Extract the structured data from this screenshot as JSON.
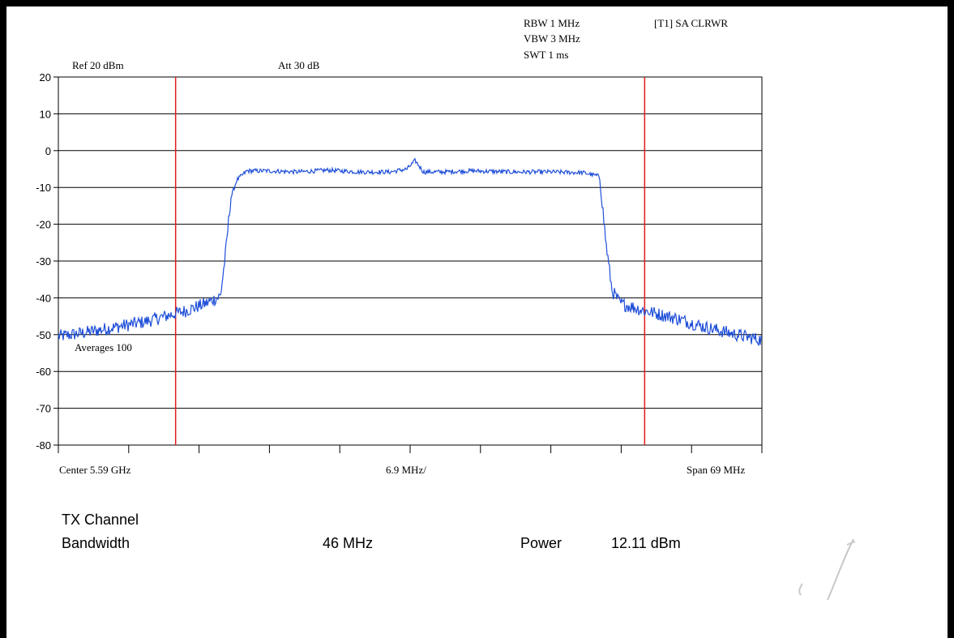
{
  "header": {
    "rbw": "RBW 1 MHz",
    "vbw": "VBW 3 MHz",
    "swt": "SWT 1 ms",
    "trace": "[T1] SA CLRWR",
    "ref": "Ref 20 dBm",
    "att": "Att  30 dB"
  },
  "chart_data": {
    "type": "line",
    "ylim": [
      -80,
      20
    ],
    "y_ticks": [
      "20",
      "10",
      "0",
      "-10",
      "-20",
      "-30",
      "-40",
      "-50",
      "-60",
      "-70",
      "-80"
    ],
    "xlim_mhz": [
      5555.5,
      5624.5
    ],
    "x_divisions": 10,
    "center_label": "Center 5.59 GHz",
    "div_label": "6.9 MHz/",
    "span_label": "Span 69 MHz",
    "annotation": "Averages 100",
    "grid": true,
    "colors": {
      "trace": "#1f4fd8",
      "marker": "#e21b1b",
      "grid": "#000000"
    },
    "markers_mhz": [
      5567,
      5613
    ],
    "series": [
      {
        "name": "",
        "x_mhz": [
          5555.5,
          5558,
          5561,
          5564,
          5566,
          5568,
          5570,
          5571.4,
          5571.9,
          5572.4,
          5573,
          5574,
          5576,
          5579,
          5582,
          5585,
          5588,
          5589.7,
          5590.5,
          5591.3,
          5593,
          5596,
          5600,
          5604,
          5607,
          5608.6,
          5609.2,
          5609.8,
          5610.6,
          5613,
          5616,
          5619,
          5622,
          5624.5
        ],
        "y_dbm": [
          -50.5,
          -49.5,
          -48,
          -46.5,
          -45,
          -43.5,
          -41.5,
          -39.5,
          -28,
          -13,
          -8,
          -5.5,
          -5.5,
          -5.8,
          -5.3,
          -5.8,
          -5.8,
          -5,
          -2.7,
          -5.8,
          -5.8,
          -5.5,
          -5.8,
          -5.8,
          -6,
          -7,
          -25,
          -38,
          -41.5,
          -43.5,
          -45.5,
          -48,
          -50,
          -51.5
        ]
      }
    ]
  },
  "info": {
    "tx_channel": "TX Channel",
    "bandwidth_label": "Bandwidth",
    "bandwidth_value": "46 MHz",
    "power_label": "Power",
    "power_value": "12.11 dBm"
  }
}
